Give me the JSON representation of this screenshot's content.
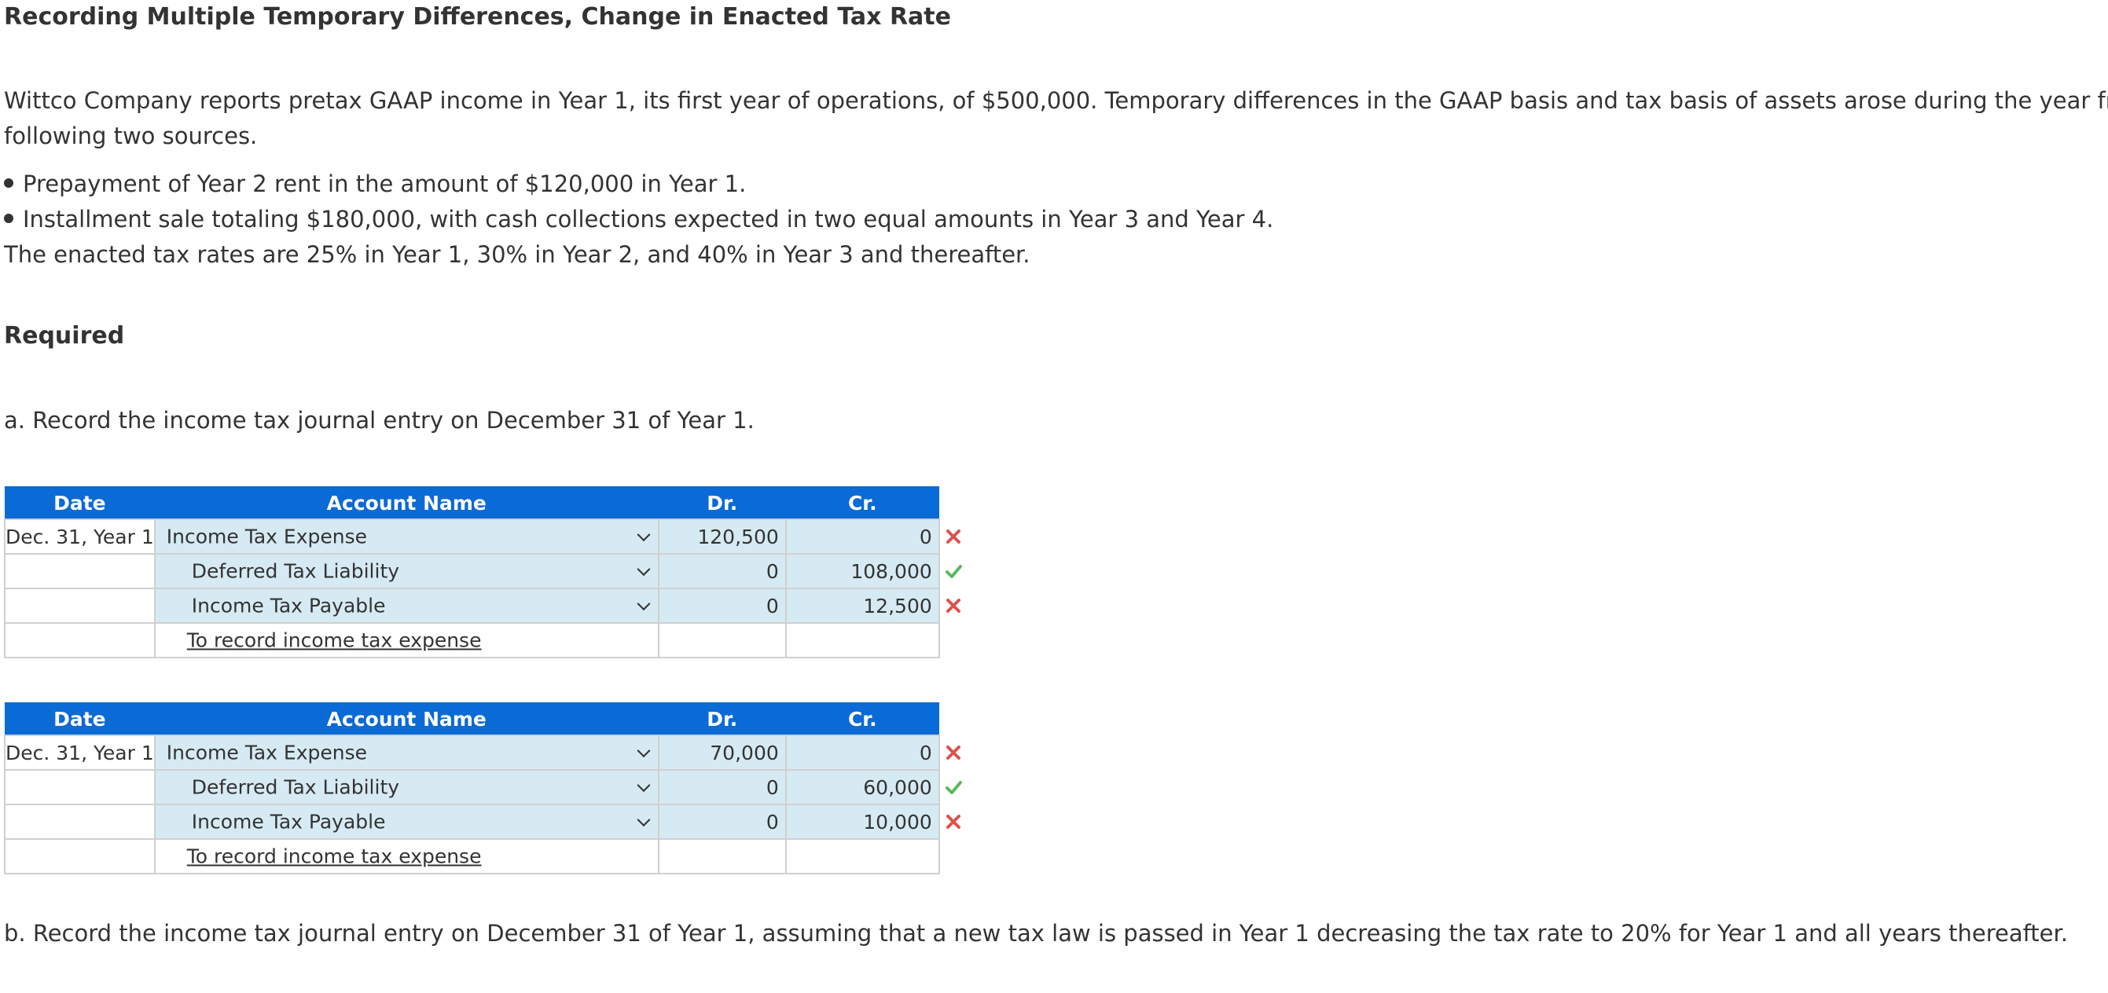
{
  "title": "Recording Multiple Temporary Differences, Change in Enacted Tax Rate",
  "intro_line1": "Wittco Company reports pretax GAAP income in Year 1, its first year of operations, of $500,000. Temporary differences in the GAAP basis and tax basis of assets arose during the year from the",
  "intro_line2": "following two sources.",
  "bullets": [
    "Prepayment of Year 2 rent in the amount of $120,000 in Year 1.",
    "Installment sale totaling $180,000, with cash collections expected in two equal amounts in Year 3 and Year 4."
  ],
  "rates_text": "The enacted tax rates are 25% in Year 1, 30% in Year 2, and 40% in Year 3 and thereafter.",
  "required_label": "Required",
  "part_a": "a. Record the income tax journal entry on December 31 of Year 1.",
  "part_b": "b. Record the income tax journal entry on December 31 of Year 1, assuming that a new tax law is passed in Year 1 decreasing the tax rate to 20% for Year 1 and all years thereafter.",
  "table_headers": {
    "date": "Date",
    "account": "Account Name",
    "dr": "Dr.",
    "cr": "Cr."
  },
  "entries": [
    {
      "rows": [
        {
          "date": "Dec. 31, Year 1",
          "account": "Income Tax Expense",
          "dr": "120,500",
          "cr": "0",
          "status": "incorrect"
        },
        {
          "date": "",
          "account": "Deferred Tax Liability",
          "dr": "0",
          "cr": "108,000",
          "status": "correct"
        },
        {
          "date": "",
          "account": "Income Tax Payable",
          "dr": "0",
          "cr": "12,500",
          "status": "incorrect"
        }
      ],
      "memo": "To record income tax expense"
    },
    {
      "rows": [
        {
          "date": "Dec. 31, Year 1",
          "account": "Income Tax Expense",
          "dr": "70,000",
          "cr": "0",
          "status": "incorrect"
        },
        {
          "date": "",
          "account": "Deferred Tax Liability",
          "dr": "0",
          "cr": "60,000",
          "status": "correct"
        },
        {
          "date": "",
          "account": "Income Tax Payable",
          "dr": "0",
          "cr": "10,000",
          "status": "incorrect"
        }
      ],
      "memo": "To record income tax expense"
    }
  ],
  "colors": {
    "header_bg": "#0a6ad6",
    "input_bg": "#d6eaf3",
    "correct": "#5cb85c",
    "incorrect": "#d9534f"
  },
  "icons": {
    "correct": "check-icon",
    "incorrect": "x-icon",
    "dropdown": "chevron-down-icon"
  }
}
